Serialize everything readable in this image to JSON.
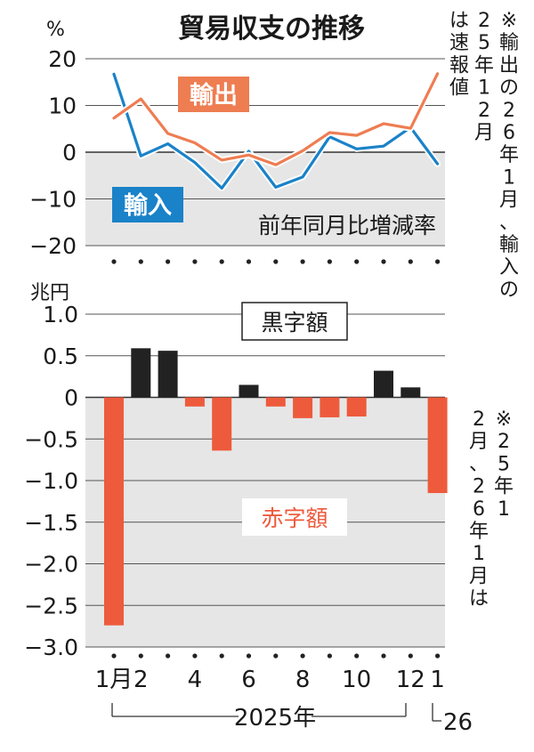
{
  "chart_data": [
    {
      "type": "line",
      "title": "貿易収支の推移",
      "unit": "%",
      "annotation": "前年同月比増減率",
      "ylim": [
        -20,
        20
      ],
      "yticks": [
        "20",
        "10",
        "0",
        "−10",
        "−20"
      ],
      "ytick_values": [
        20,
        10,
        0,
        -10,
        -20
      ],
      "series": [
        {
          "name": "輸出",
          "color": "#ee7d52",
          "values": [
            7.3,
            11.4,
            4.0,
            2.0,
            -1.7,
            -0.6,
            -2.7,
            0.3,
            4.2,
            3.6,
            6.1,
            5.1,
            16.8
          ]
        },
        {
          "name": "輸入",
          "color": "#1a82c8",
          "values": [
            16.7,
            -0.8,
            1.8,
            -2.2,
            -7.7,
            0.2,
            -7.5,
            -5.3,
            3.3,
            0.7,
            1.3,
            5.3,
            -2.5
          ]
        }
      ]
    },
    {
      "type": "bar",
      "unit": "兆円",
      "ylim": [
        -3.0,
        1.0
      ],
      "yticks": [
        "1.0",
        "0.5",
        "0",
        "−0.5",
        "−1.0",
        "−1.5",
        "−2.0",
        "−2.5",
        "−3.0"
      ],
      "ytick_values": [
        1.0,
        0.5,
        0,
        -0.5,
        -1.0,
        -1.5,
        -2.0,
        -2.5,
        -3.0
      ],
      "values": [
        -2.74,
        0.59,
        0.56,
        -0.11,
        -0.64,
        0.15,
        -0.11,
        -0.25,
        -0.24,
        -0.23,
        0.32,
        0.12,
        -1.15
      ],
      "surplus_label": "黒字額",
      "deficit_label": "赤字額",
      "surplus_color": "#222222",
      "deficit_color": "#ee5a3c"
    }
  ],
  "x_labels": [
    "1月",
    "2",
    "",
    "4",
    "",
    "6",
    "",
    "8",
    "",
    "10",
    "",
    "12",
    "1"
  ],
  "year_2025": "2025年",
  "year_2026": "26",
  "note_right_top": "※輸出の26年1月、輸入の25年12月は速報値",
  "note_right_bottom": "※25年12月、26年1月は速報値"
}
